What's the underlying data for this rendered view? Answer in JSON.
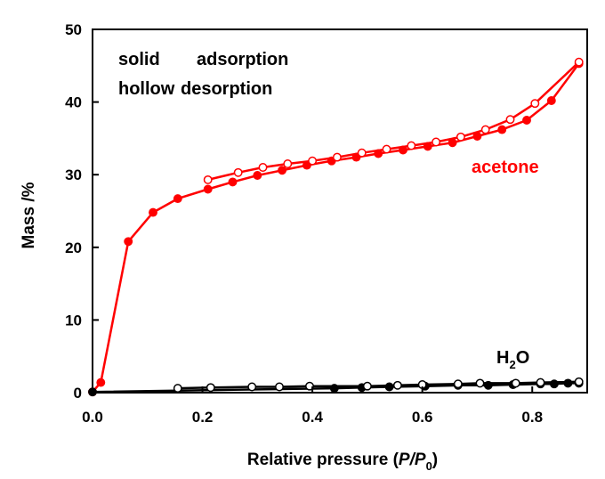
{
  "chart_data": {
    "type": "line",
    "xlabel_prefix": "Relative pressure (",
    "xlabel_var": "P",
    "xlabel_slash": "/",
    "xlabel_var2": "P",
    "xlabel_sub": "0",
    "xlabel_suffix": ")",
    "ylabel": "Mass /%",
    "xlim": [
      0.0,
      0.9
    ],
    "ylim": [
      0,
      50
    ],
    "xticks": [
      0.0,
      0.2,
      0.4,
      0.6,
      0.8
    ],
    "xtick_labels": [
      "0.0",
      "0.2",
      "0.4",
      "0.6",
      "0.8"
    ],
    "yticks": [
      0,
      10,
      20,
      30,
      40,
      50
    ],
    "ytick_labels": [
      "0",
      "10",
      "20",
      "30",
      "40",
      "50"
    ],
    "legend": {
      "solid_label": "solid",
      "solid_meaning": "adsorption",
      "hollow_label": "hollow",
      "hollow_meaning": "desorption"
    },
    "series": [
      {
        "name": "acetone",
        "branch": "adsorption",
        "marker": "solid",
        "color": "#ff0000",
        "x": [
          0.0,
          0.015,
          0.065,
          0.11,
          0.155,
          0.21,
          0.255,
          0.3,
          0.345,
          0.39,
          0.435,
          0.48,
          0.52,
          0.565,
          0.61,
          0.655,
          0.7,
          0.745,
          0.79,
          0.835,
          0.885
        ],
        "y": [
          0.1,
          1.4,
          20.8,
          24.8,
          26.7,
          28.0,
          29.0,
          29.9,
          30.6,
          31.3,
          31.9,
          32.4,
          32.9,
          33.4,
          33.9,
          34.4,
          35.3,
          36.2,
          37.5,
          40.2,
          45.3
        ]
      },
      {
        "name": "acetone",
        "branch": "desorption",
        "marker": "hollow",
        "color": "#ff0000",
        "x": [
          0.885,
          0.805,
          0.76,
          0.715,
          0.67,
          0.625,
          0.58,
          0.535,
          0.49,
          0.445,
          0.4,
          0.355,
          0.31,
          0.265,
          0.21
        ],
        "y": [
          45.5,
          39.8,
          37.6,
          36.2,
          35.2,
          34.5,
          34.0,
          33.5,
          33.0,
          32.4,
          31.9,
          31.5,
          31.0,
          30.3,
          29.3
        ]
      },
      {
        "name": "H2O",
        "branch": "adsorption",
        "marker": "solid",
        "color": "#000000",
        "x": [
          0.0,
          0.44,
          0.49,
          0.54,
          0.605,
          0.665,
          0.72,
          0.765,
          0.815,
          0.84,
          0.865,
          0.885
        ],
        "y": [
          0.1,
          0.6,
          0.7,
          0.8,
          0.9,
          1.0,
          1.0,
          1.1,
          1.2,
          1.2,
          1.3,
          1.3
        ]
      },
      {
        "name": "H2O",
        "branch": "desorption",
        "marker": "hollow",
        "color": "#000000",
        "x": [
          0.885,
          0.815,
          0.77,
          0.705,
          0.665,
          0.6,
          0.555,
          0.5,
          0.395,
          0.34,
          0.29,
          0.215,
          0.155
        ],
        "y": [
          1.5,
          1.4,
          1.3,
          1.3,
          1.2,
          1.1,
          1.0,
          0.9,
          0.9,
          0.8,
          0.8,
          0.7,
          0.6
        ]
      }
    ],
    "annotations": {
      "acetone_label": "acetone",
      "h2o_prefix": "H",
      "h2o_sub": "2",
      "h2o_suffix": "O"
    }
  }
}
